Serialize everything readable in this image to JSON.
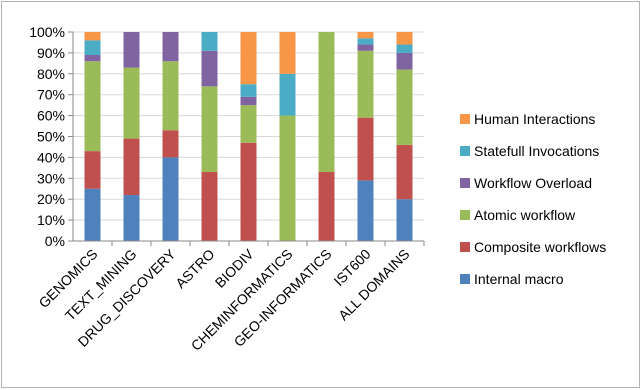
{
  "chart_data": {
    "type": "bar",
    "stacked": true,
    "categories": [
      "GENOMICS",
      "TEXT_MINING",
      "DRUG_DISCOVERY",
      "ASTRO",
      "BIODIV",
      "CHEMINFORMATICS",
      "GEO-INFORMATICS",
      "IST600",
      "ALL DOMAINS"
    ],
    "yticks": [
      "0%",
      "10%",
      "20%",
      "30%",
      "40%",
      "50%",
      "60%",
      "70%",
      "80%",
      "90%",
      "100%"
    ],
    "ylim": [
      0,
      100
    ],
    "legend_position": "right",
    "series": [
      {
        "name": "Internal macro",
        "color": "#4f81bd",
        "values": [
          25,
          22,
          40,
          0,
          0,
          0,
          0,
          29,
          20
        ]
      },
      {
        "name": "Composite workflows",
        "color": "#c0504d",
        "values": [
          18,
          27,
          13,
          33,
          47,
          0,
          33,
          30,
          26
        ]
      },
      {
        "name": "Atomic workflow",
        "color": "#9bbb59",
        "values": [
          43,
          34,
          33,
          41,
          18,
          60,
          67,
          32,
          36
        ]
      },
      {
        "name": "Workflow Overload",
        "color": "#8064a2",
        "values": [
          3,
          17,
          14,
          17,
          4,
          0,
          0,
          3,
          8
        ]
      },
      {
        "name": "Statefull Invocations",
        "color": "#4bacc6",
        "values": [
          7,
          0,
          0,
          9,
          6,
          20,
          0,
          3,
          4
        ]
      },
      {
        "name": "Human Interactions",
        "color": "#f79646",
        "values": [
          4,
          0,
          0,
          0,
          25,
          20,
          0,
          3,
          6
        ]
      }
    ]
  }
}
